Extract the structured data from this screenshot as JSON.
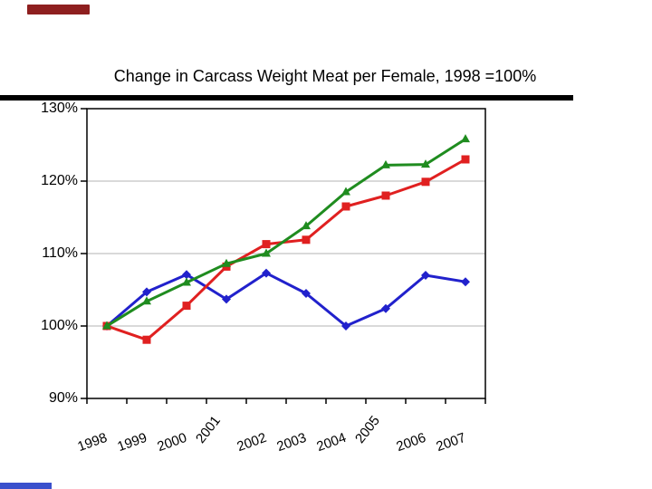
{
  "slide": {
    "title": "Change in Carcass Weight Meat per Female, 1998 =100%",
    "accent_bar_top_color": "#8e1f1f",
    "accent_bar_bottom_color": "#3a50cc"
  },
  "chart_data": {
    "type": "line",
    "title": "Change in Carcass Weight Meat per Female, 1998 =100%",
    "categories": [
      "1998",
      "1999",
      "2000",
      "2001",
      "2002",
      "2003",
      "2004",
      "2005",
      "2006",
      "2007"
    ],
    "series": [
      {
        "name": "blue-diamond-series",
        "marker": "diamond",
        "color": "#2121cc",
        "values": [
          100,
          104.7,
          107.1,
          103.7,
          107.3,
          104.5,
          100,
          102.4,
          107,
          106.1
        ]
      },
      {
        "name": "red-square-series",
        "marker": "square",
        "color": "#e02020",
        "values": [
          100,
          98.1,
          102.8,
          108.2,
          111.3,
          111.9,
          116.5,
          118,
          119.9,
          123
        ]
      },
      {
        "name": "green-triangle-series",
        "marker": "triangle-up",
        "color": "#1f8c1f",
        "values": [
          100,
          103.4,
          106,
          108.6,
          110,
          113.8,
          118.5,
          122.2,
          122.3,
          125.8
        ]
      }
    ],
    "ylim": [
      90,
      130
    ],
    "ytick_step": 10,
    "ytick_labels": [
      "90%",
      "100%",
      "110%",
      "120%",
      "130%"
    ],
    "xlabel": "",
    "ylabel": "",
    "grid": true,
    "legend": "none",
    "gridline_color": "#b3b3b3",
    "axis_color": "#000000",
    "plot_background": "#ffffff"
  }
}
